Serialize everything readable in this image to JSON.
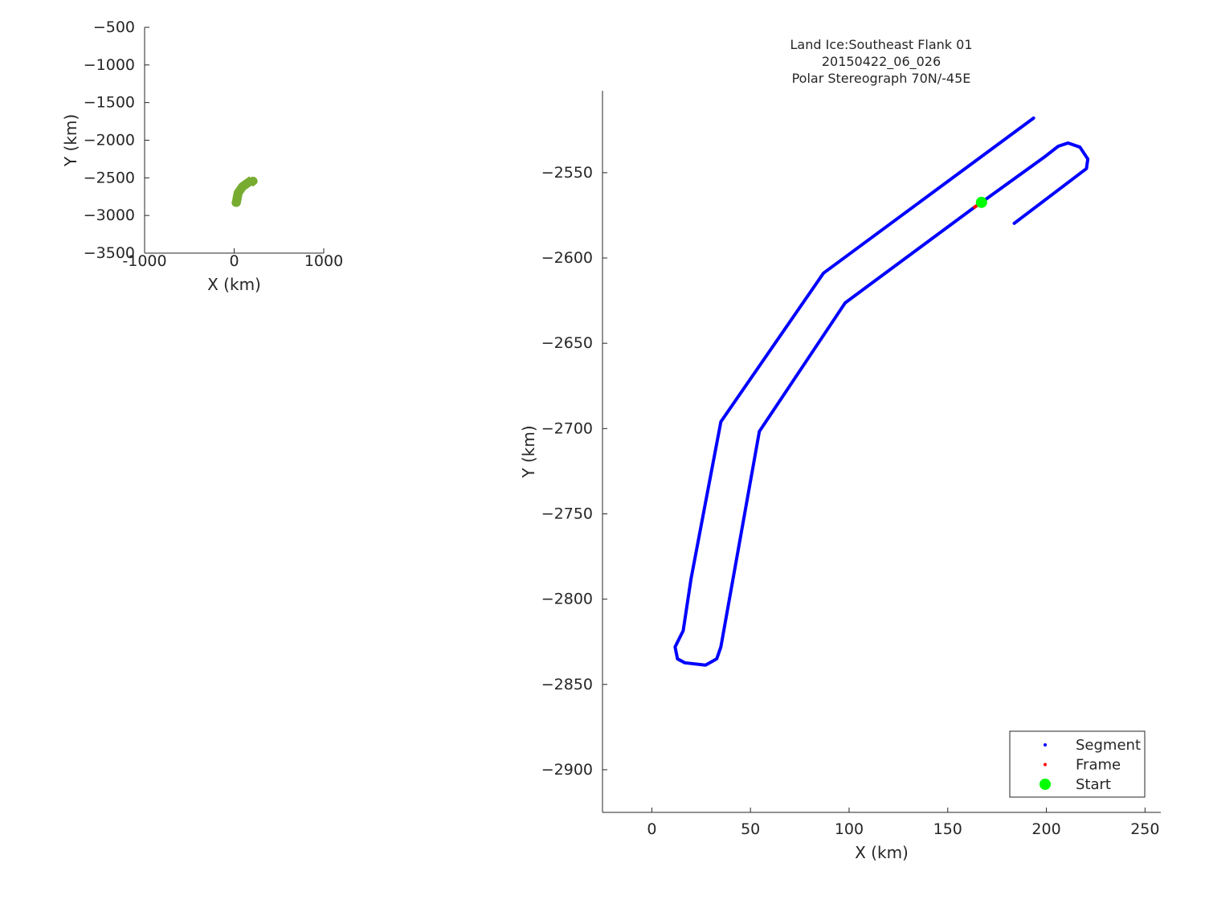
{
  "chart_data": [
    {
      "type": "line",
      "title": "",
      "xlabel": "X (km)",
      "ylabel": "Y (km)",
      "xlim": [
        -1000,
        1000
      ],
      "ylim": [
        -3500,
        -500
      ],
      "xticks": [
        -1000,
        0,
        1000
      ],
      "yticks": [
        -500,
        -1000,
        -1500,
        -2000,
        -2500,
        -3000,
        -3500
      ],
      "grid": false,
      "series": [
        {
          "color": "#77ac30",
          "x": [
            193.5,
            87,
            35,
            19.9,
            15.9,
            11.8,
            13,
            16.7,
            27.2,
            32.9,
            35,
            54.5,
            93.1,
            98,
            163,
            167.1,
            198.8,
            206,
            211,
            217,
            221,
            220.3,
            183.7
          ],
          "y": [
            -2518,
            -2608.9,
            -2696,
            -2787.9,
            -2818.5,
            -2828,
            -2835,
            -2837.3,
            -2838.7,
            -2835,
            -2828,
            -2701.7,
            -2634.8,
            -2626.3,
            -2570.7,
            -2567.4,
            -2541,
            -2534.5,
            -2532.6,
            -2535,
            -2542,
            -2547.6,
            -2579.7
          ]
        }
      ]
    },
    {
      "type": "line",
      "title": [
        "Land Ice:Southeast Flank 01",
        "20150422_06_026",
        "Polar Stereograph 70N/-45E"
      ],
      "xlabel": "X (km)",
      "ylabel": "Y (km)",
      "xlim": [
        -25,
        258
      ],
      "ylim": [
        -2925,
        -2502
      ],
      "xticks": [
        0,
        50,
        100,
        150,
        200,
        250
      ],
      "yticks": [
        -2550,
        -2600,
        -2650,
        -2700,
        -2750,
        -2800,
        -2850,
        -2900
      ],
      "grid": false,
      "legend": "bottom-right",
      "series": [
        {
          "name": "Segment",
          "color": "#0000ff",
          "x": [
            193.5,
            87,
            35,
            19.9,
            15.9,
            11.8,
            13,
            16.7,
            27.2,
            32.9,
            35,
            54.5,
            93.1,
            98,
            163,
            167.1,
            198.8,
            206,
            211,
            217,
            221,
            220.3,
            183.7
          ],
          "y": [
            -2518,
            -2608.9,
            -2696,
            -2787.9,
            -2818.5,
            -2828,
            -2835,
            -2837.3,
            -2838.7,
            -2835,
            -2828,
            -2701.7,
            -2634.8,
            -2626.3,
            -2570.7,
            -2567.4,
            -2541,
            -2534.5,
            -2532.6,
            -2535,
            -2542,
            -2547.6,
            -2579.7
          ]
        },
        {
          "name": "Frame",
          "color": "#ff0000",
          "x": [
            163,
            167.1
          ],
          "y": [
            -2570.7,
            -2567.4
          ]
        },
        {
          "name": "Start",
          "color": "#00ff00",
          "x": [
            167.1
          ],
          "y": [
            -2567.4
          ]
        }
      ]
    }
  ]
}
